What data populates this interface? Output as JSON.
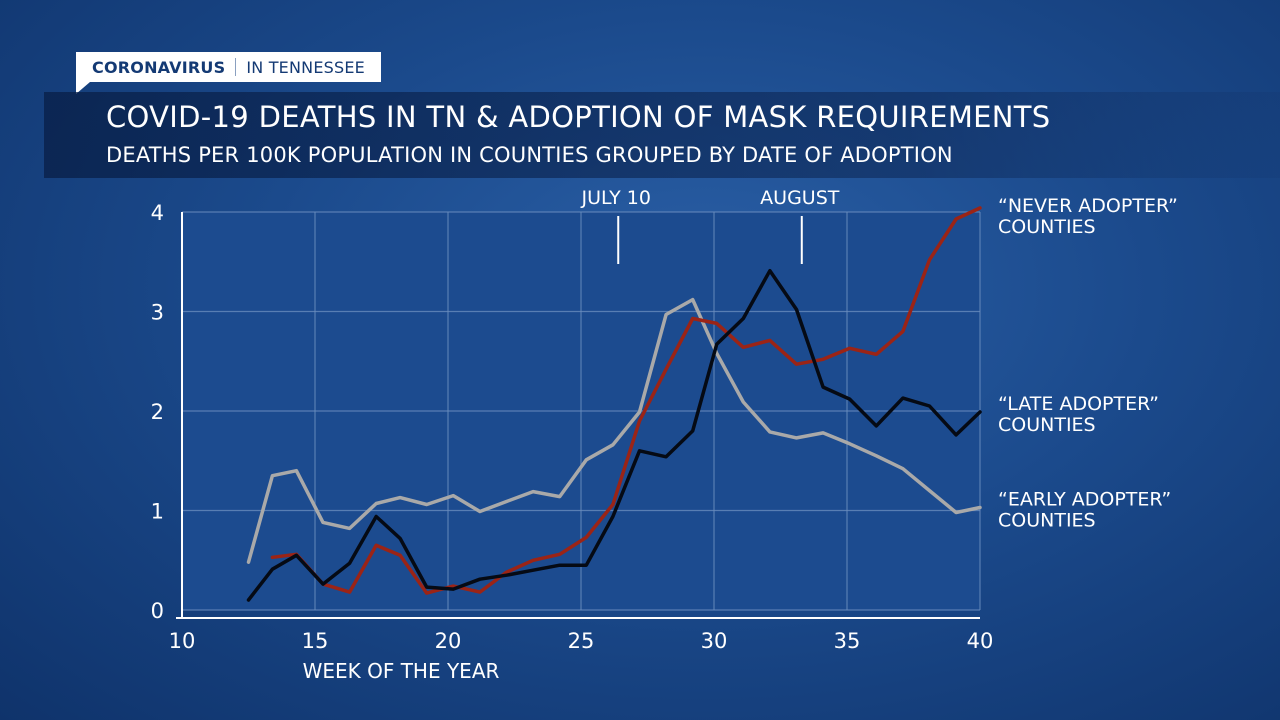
{
  "header": {
    "tag_main": "CORONAVIRUS",
    "tag_sub": "IN TENNESSEE",
    "title": "COVID-19 DEATHS IN TN & ADOPTION OF MASK REQUIREMENTS",
    "subtitle": "DEATHS PER 100K POPULATION IN COUNTIES GROUPED BY DATE OF ADOPTION"
  },
  "colors": {
    "never": "#9b2416",
    "late": "#050a14",
    "early": "#a9a9a9",
    "plot_bg": "#1c4b8f",
    "grid": "#6d8fc0"
  },
  "chart_data": {
    "type": "line",
    "xlabel": "WEEK OF THE YEAR",
    "ylabel": "",
    "xlim": [
      10,
      40
    ],
    "ylim": [
      0,
      4
    ],
    "xticks": [
      10,
      15,
      20,
      25,
      30,
      35,
      40
    ],
    "yticks": [
      0,
      1,
      2,
      3,
      4
    ],
    "grid": true,
    "annotations": [
      {
        "label": "JULY 10",
        "x": 26.4
      },
      {
        "label": "AUGUST",
        "x": 33.3
      }
    ],
    "series": [
      {
        "name": "“EARLY ADOPTER” COUNTIES",
        "label_lines": [
          "“EARLY ADOPTER”",
          "COUNTIES"
        ],
        "color_key": "early",
        "x": [
          12.5,
          13.4,
          14.3,
          15.3,
          16.3,
          17.3,
          18.2,
          19.2,
          20.2,
          21.2,
          22.2,
          23.2,
          24.2,
          25.2,
          26.2,
          27.2,
          28.2,
          29.2,
          30.1,
          31.1,
          32.1,
          33.1,
          34.1,
          35.1,
          36.1,
          37.1,
          38.1,
          39.1,
          40.0
        ],
        "y": [
          0.48,
          1.35,
          1.4,
          0.88,
          0.82,
          1.07,
          1.13,
          1.06,
          1.15,
          0.99,
          1.09,
          1.19,
          1.14,
          1.51,
          1.66,
          1.99,
          2.97,
          3.12,
          2.58,
          2.09,
          1.79,
          1.73,
          1.78,
          1.67,
          1.55,
          1.42,
          1.2,
          0.98,
          1.03
        ]
      },
      {
        "name": "“NEVER ADOPTER” COUNTIES",
        "label_lines": [
          "“NEVER ADOPTER”",
          "COUNTIES"
        ],
        "color_key": "never",
        "x": [
          13.4,
          14.3,
          15.3,
          16.3,
          17.3,
          18.2,
          19.2,
          20.2,
          21.2,
          22.2,
          23.2,
          24.2,
          25.2,
          26.2,
          27.2,
          28.2,
          29.2,
          30.1,
          31.1,
          32.1,
          33.1,
          34.1,
          35.1,
          36.1,
          37.1,
          38.1,
          39.1,
          40.0
        ],
        "y": [
          0.53,
          0.56,
          0.26,
          0.18,
          0.65,
          0.55,
          0.17,
          0.24,
          0.18,
          0.38,
          0.5,
          0.56,
          0.73,
          1.06,
          1.9,
          2.42,
          2.93,
          2.88,
          2.64,
          2.71,
          2.47,
          2.52,
          2.63,
          2.57,
          2.8,
          3.52,
          3.93,
          4.04
        ]
      },
      {
        "name": "“LATE ADOPTER” COUNTIES",
        "label_lines": [
          "“LATE ADOPTER”",
          "COUNTIES"
        ],
        "color_key": "late",
        "x": [
          12.5,
          13.4,
          14.3,
          15.3,
          16.3,
          17.3,
          18.2,
          19.2,
          20.2,
          21.2,
          22.2,
          23.2,
          24.2,
          25.2,
          26.2,
          27.2,
          28.2,
          29.2,
          30.1,
          31.1,
          32.1,
          33.1,
          34.1,
          35.1,
          36.1,
          37.1,
          38.1,
          39.1,
          40.0
        ],
        "y": [
          0.1,
          0.41,
          0.55,
          0.26,
          0.47,
          0.94,
          0.72,
          0.23,
          0.21,
          0.31,
          0.35,
          0.4,
          0.45,
          0.45,
          0.94,
          1.6,
          1.54,
          1.8,
          2.67,
          2.93,
          3.41,
          3.02,
          2.24,
          2.12,
          1.85,
          2.13,
          2.05,
          1.76,
          1.99
        ]
      }
    ]
  }
}
